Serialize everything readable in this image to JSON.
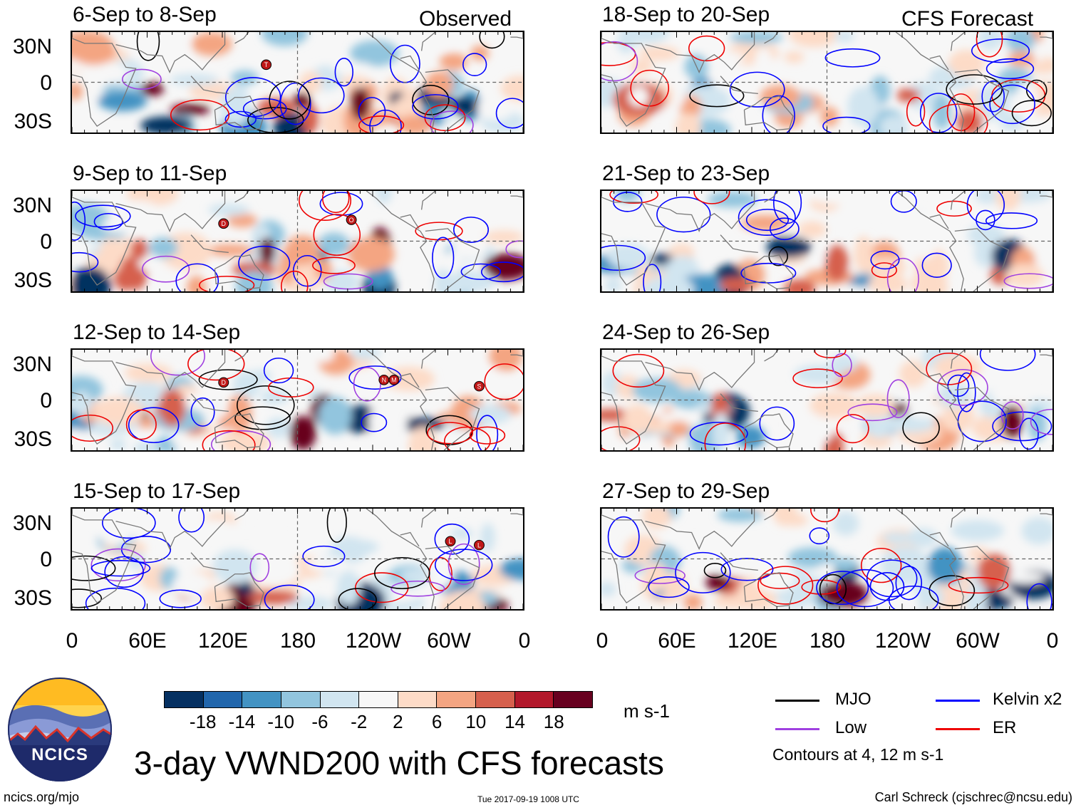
{
  "labels": {
    "observed": "Observed",
    "forecast": "CFS Forecast",
    "units": "m s-1",
    "title": "3-day VWND200 with CFS forecasts",
    "contours_note": "Contours at 4, 12 m s-1",
    "url": "ncics.org/mjo",
    "timestamp": "Tue 2017-09-19 1008 UTC",
    "author": "Carl Schreck (cjschrec@ncsu.edu)",
    "logo_text": "NCICS"
  },
  "lat_ticks": [
    "30N",
    "0",
    "30S"
  ],
  "lon_ticks": [
    "0",
    "60E",
    "120E",
    "180",
    "120W",
    "60W",
    "0"
  ],
  "observed_panels": [
    {
      "title": "6-Sep to 8-Sep"
    },
    {
      "title": "9-Sep to 11-Sep"
    },
    {
      "title": "12-Sep to 14-Sep"
    },
    {
      "title": "15-Sep to 17-Sep"
    }
  ],
  "forecast_panels": [
    {
      "title": "18-Sep to 20-Sep"
    },
    {
      "title": "21-Sep to 23-Sep"
    },
    {
      "title": "24-Sep to 26-Sep"
    },
    {
      "title": "27-Sep to 29-Sep"
    }
  ],
  "colorbar": {
    "colors": [
      "#053061",
      "#2166ac",
      "#4393c3",
      "#92c5de",
      "#d1e5f0",
      "#f7f7f7",
      "#fddbc7",
      "#f4a582",
      "#d6604d",
      "#b2182b",
      "#67001f"
    ],
    "labels": [
      "-18",
      "-14",
      "-10",
      "-6",
      "-2",
      "2",
      "6",
      "10",
      "14",
      "18"
    ]
  },
  "legend": [
    {
      "name": "MJO",
      "color": "#000000"
    },
    {
      "name": "Kelvin x2",
      "color": "#0000ff"
    },
    {
      "name": "Low",
      "color": "#a040e0"
    },
    {
      "name": "ER",
      "color": "#ee0000"
    }
  ],
  "storm_markers": {
    "observed": [
      [
        {
          "label": "T",
          "lon": 155,
          "lat": 14
        }
      ],
      [
        {
          "label": "D",
          "lon": 121,
          "lat": 14
        },
        {
          "label": "O",
          "lon": 223,
          "lat": 17
        }
      ],
      [
        {
          "label": "D",
          "lon": 121,
          "lat": 14
        },
        {
          "label": "N",
          "lon": 249,
          "lat": 16
        },
        {
          "label": "M",
          "lon": 257,
          "lat": 16
        },
        {
          "label": "S",
          "lon": 325,
          "lat": 11
        }
      ],
      [
        {
          "label": "L",
          "lon": 302,
          "lat": 14
        },
        {
          "label": "L",
          "lon": 325,
          "lat": 11
        }
      ]
    ]
  }
}
